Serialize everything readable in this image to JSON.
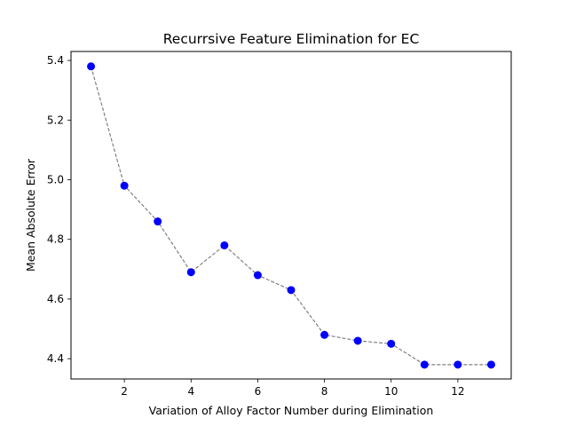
{
  "chart_data": {
    "type": "line",
    "title": "Recurrsive Feature Elimination for EC",
    "xlabel": "Variation of Alloy Factor Number during Elimination",
    "ylabel": "Mean Absolute Error",
    "x": [
      1,
      2,
      3,
      4,
      5,
      6,
      7,
      8,
      9,
      10,
      11,
      12,
      13
    ],
    "series": [
      {
        "values": [
          5.38,
          4.98,
          4.86,
          4.69,
          4.78,
          4.68,
          4.63,
          4.48,
          4.46,
          4.45,
          4.38,
          4.38,
          4.38
        ]
      }
    ],
    "xlim": [
      0.4,
      13.6
    ],
    "ylim": [
      4.332,
      5.43
    ],
    "xticks": [
      2,
      4,
      6,
      8,
      10,
      12
    ],
    "xtick_labels": [
      "2",
      "4",
      "6",
      "8",
      "10",
      "12"
    ],
    "yticks": [
      4.4,
      4.6,
      4.8,
      5.0,
      5.2,
      5.4
    ],
    "ytick_labels": [
      "4.4",
      "4.6",
      "4.8",
      "5.0",
      "5.2",
      "5.4"
    ],
    "grid": false,
    "colors": {
      "marker": "#0000ff",
      "line": "#808080"
    }
  }
}
